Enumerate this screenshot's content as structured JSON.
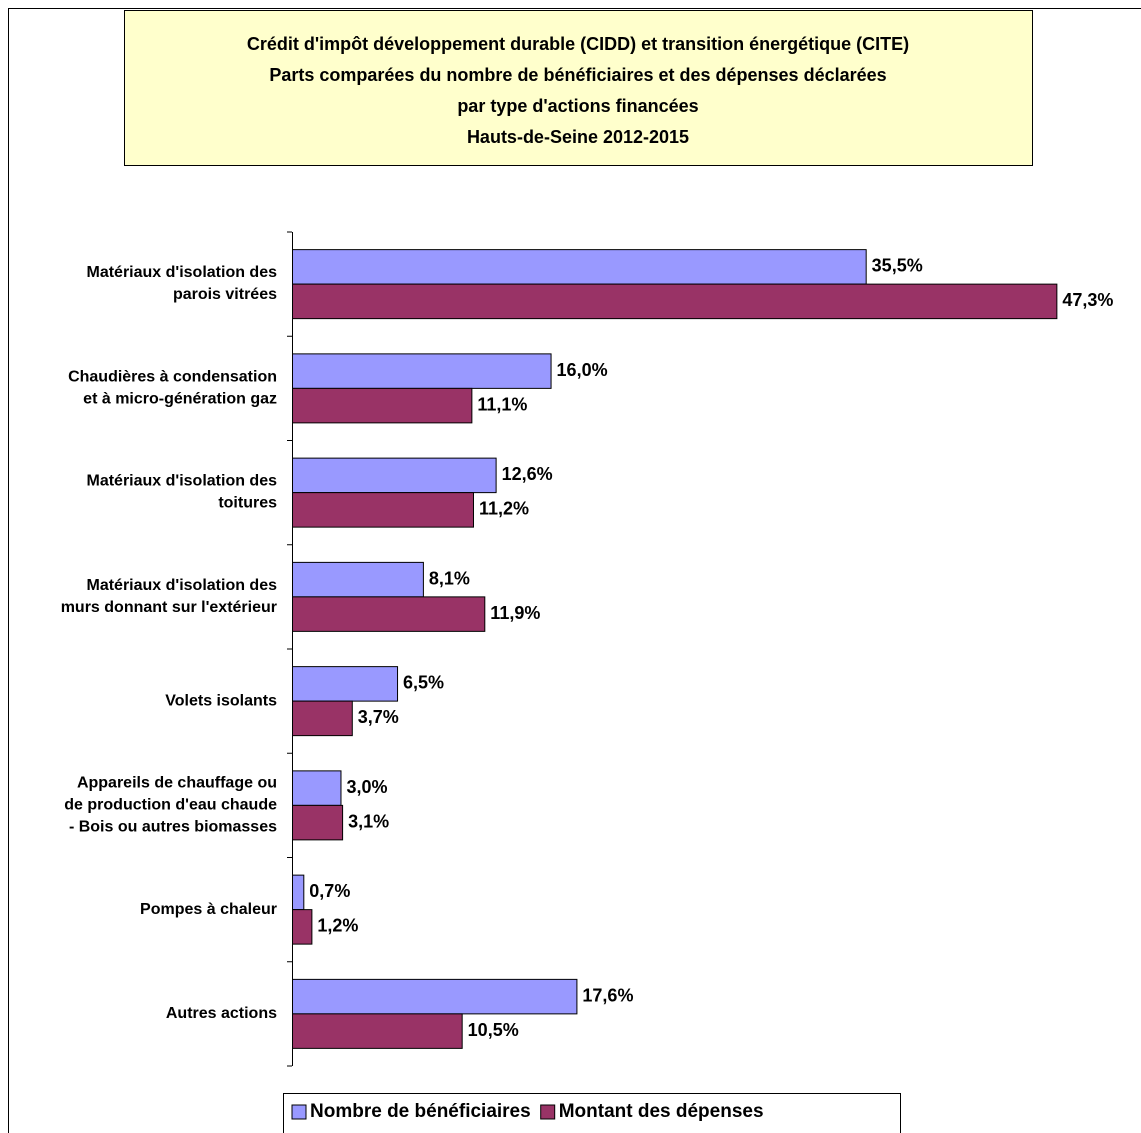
{
  "chart_data": {
    "type": "bar",
    "orientation": "horizontal",
    "title": [
      "Crédit d'impôt développement durable (CIDD) et transition énergétique (CITE)",
      "Parts comparées du nombre de bénéficiaires et des dépenses déclarées",
      "par type d'actions financées",
      "Hauts-de-Seine 2012-2015"
    ],
    "categories": [
      "Matériaux d'isolation des\nparois vitrées",
      "Chaudières à condensation\net à micro-génération gaz",
      "Matériaux d'isolation des\ntoitures",
      "Matériaux d'isolation des\nmurs donnant sur l'extérieur",
      "Volets isolants",
      "Appareils de chauffage ou\nde production d'eau chaude\n- Bois ou autres biomasses",
      "Pompes à chaleur",
      "Autres actions"
    ],
    "series": [
      {
        "name": "Nombre de bénéficiaires",
        "color": "#9999ff",
        "values": [
          35.5,
          16.0,
          12.6,
          8.1,
          6.5,
          3.0,
          0.7,
          17.6
        ],
        "value_labels": [
          "35,5%",
          "16,0%",
          "12,6%",
          "8,1%",
          "6,5%",
          "3,0%",
          "0,7%",
          "17,6%"
        ]
      },
      {
        "name": "Montant des dépenses",
        "color": "#993366",
        "values": [
          47.3,
          11.1,
          11.2,
          11.9,
          3.7,
          3.1,
          1.2,
          10.5
        ],
        "value_labels": [
          "47,3%",
          "11,1%",
          "11,2%",
          "11,9%",
          "3,7%",
          "3,1%",
          "1,2%",
          "10,5%"
        ]
      }
    ],
    "xlim": [
      0,
      50
    ],
    "legend": "bottom"
  }
}
